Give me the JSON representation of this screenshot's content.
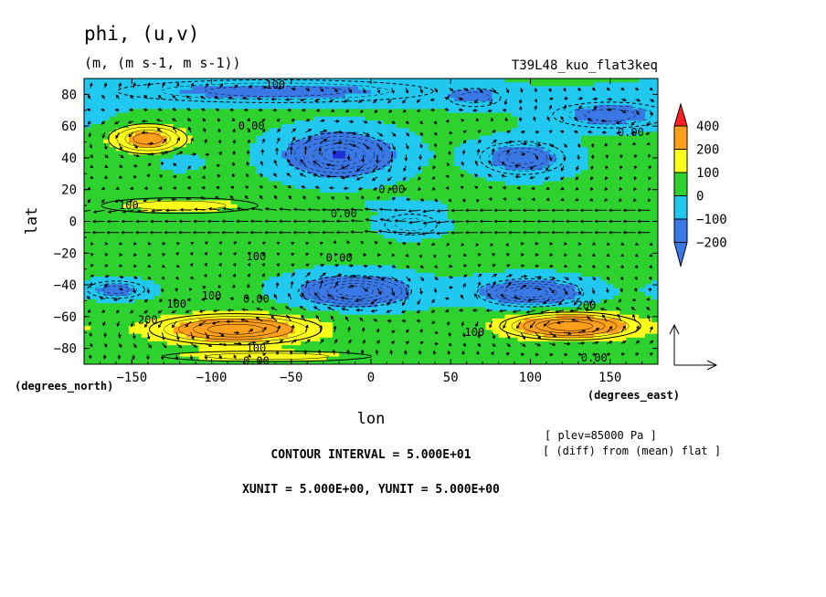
{
  "header": {
    "title": "phi, (u,v)",
    "units": "(m, (m s-1, m s-1))",
    "run_name": "T39L48_kuo_flat3keq"
  },
  "notes": {
    "plev": "[ plev=85000 Pa ]",
    "diff": "[ (diff) from (mean) flat ]",
    "contour_interval": "CONTOUR INTERVAL = 5.000E+01",
    "vector_units": "XUNIT = 5.000E+00, YUNIT = 5.000E+00"
  },
  "chart_data": {
    "type": "heatmap",
    "subtype": "filled contour with wind vectors",
    "variable": "phi",
    "xlabel": "lon",
    "ylabel": "lat",
    "x_unit_label": "(degrees_east)",
    "y_unit_label": "(degrees_north)",
    "xlim": [
      -180,
      180
    ],
    "ylim": [
      -90,
      90
    ],
    "x_ticks": [
      -150,
      -100,
      -50,
      0,
      50,
      100,
      150
    ],
    "x_tick_labels": [
      "−150",
      "−100",
      "−50",
      "0",
      "50",
      "100",
      "150"
    ],
    "y_ticks": [
      80,
      60,
      40,
      20,
      0,
      -20,
      -40,
      -60,
      -80
    ],
    "y_tick_labels": [
      "80",
      "60",
      "40",
      "20",
      "0",
      "−20",
      "−40",
      "−60",
      "−80"
    ],
    "colorbar": {
      "levels": [
        -200,
        -100,
        0,
        100,
        200,
        400
      ],
      "level_labels": [
        "−200",
        "−100",
        "0",
        "100",
        "200",
        "400"
      ],
      "colors": [
        "#3a78e6",
        "#21c8ef",
        "#2ed22e",
        "#ffff1c",
        "#ff9f1c",
        "#ff2020",
        "#1f2fd6"
      ],
      "extend": "both"
    },
    "contour_labels": [
      {
        "text": "100",
        "lon": -60,
        "lat": 86
      },
      {
        "text": "0.00",
        "lon": -75,
        "lat": 60
      },
      {
        "text": "0.00",
        "lon": 163,
        "lat": 56
      },
      {
        "text": "0.00",
        "lon": 13,
        "lat": 20
      },
      {
        "text": "0.00",
        "lon": -17,
        "lat": 5
      },
      {
        "text": "100",
        "lon": -152,
        "lat": 10
      },
      {
        "text": "100",
        "lon": -72,
        "lat": -22
      },
      {
        "text": "0.00",
        "lon": -20,
        "lat": -23
      },
      {
        "text": "100",
        "lon": -100,
        "lat": -47
      },
      {
        "text": "0.00",
        "lon": -72,
        "lat": -49
      },
      {
        "text": "100",
        "lon": -122,
        "lat": -52
      },
      {
        "text": "200",
        "lon": -140,
        "lat": -62
      },
      {
        "text": "200",
        "lon": 135,
        "lat": -53
      },
      {
        "text": "100",
        "lon": 65,
        "lat": -70
      },
      {
        "text": "100",
        "lon": -72,
        "lat": -80
      },
      {
        "text": "0.00",
        "lon": -72,
        "lat": -88
      },
      {
        "text": "0.00",
        "lon": 140,
        "lat": -86
      }
    ],
    "vector_reference": {
      "u": 5,
      "v": 5
    }
  }
}
